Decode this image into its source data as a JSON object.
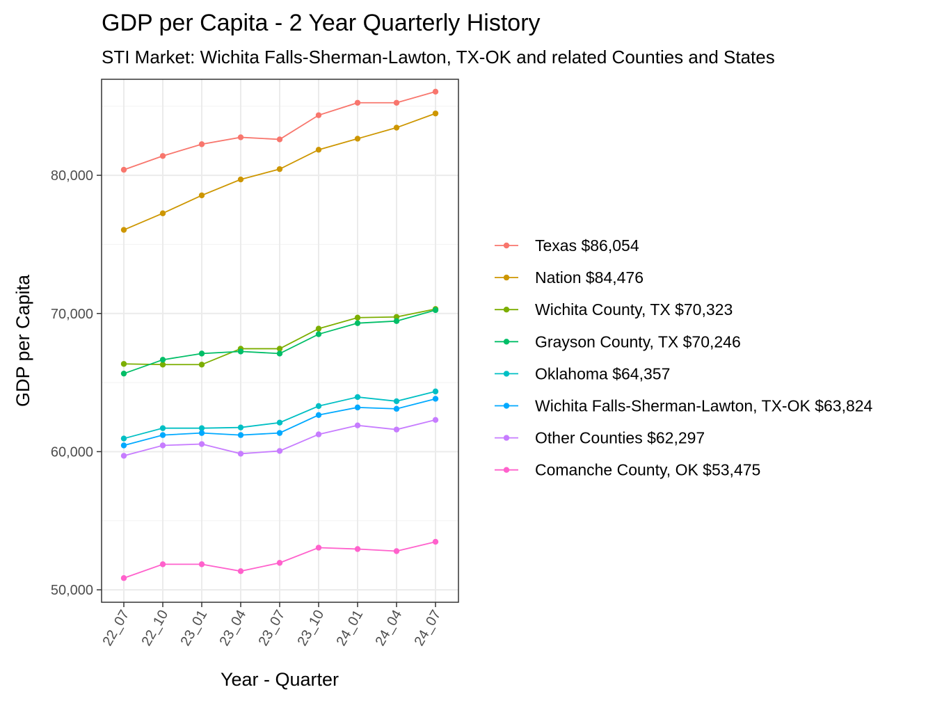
{
  "chart_data": {
    "type": "line",
    "title": "GDP per Capita - 2 Year Quarterly History",
    "subtitle": "STI Market: Wichita Falls-Sherman-Lawton, TX-OK and related Counties and States",
    "xlabel": "Year - Quarter",
    "ylabel": "GDP per Capita",
    "categories": [
      "22_07",
      "22_10",
      "23_01",
      "23_04",
      "23_07",
      "23_10",
      "24_01",
      "24_04",
      "24_07"
    ],
    "y_ticks": [
      50000,
      60000,
      70000,
      80000
    ],
    "y_tick_labels": [
      "50,000",
      "60,000",
      "70,000",
      "80,000"
    ],
    "ylim": [
      49100,
      86950
    ],
    "grid": true,
    "legend_position": "right",
    "series": [
      {
        "name": "Texas $86,054",
        "color": "#F8766D",
        "values": [
          80400,
          81400,
          82250,
          82750,
          82600,
          84350,
          85250,
          85250,
          86054
        ]
      },
      {
        "name": "Nation $84,476",
        "color": "#CD9600",
        "values": [
          76050,
          77250,
          78550,
          79700,
          80450,
          81850,
          82650,
          83450,
          84476
        ]
      },
      {
        "name": "Wichita County, TX $70,323",
        "color": "#7CAE00",
        "values": [
          66350,
          66300,
          66300,
          67450,
          67450,
          68900,
          69700,
          69750,
          70323
        ]
      },
      {
        "name": "Grayson County, TX $70,246",
        "color": "#00BE67",
        "values": [
          65650,
          66650,
          67100,
          67250,
          67100,
          68500,
          69300,
          69450,
          70246
        ]
      },
      {
        "name": "Oklahoma $64,357",
        "color": "#00BFC4",
        "values": [
          60950,
          61700,
          61700,
          61750,
          62100,
          63300,
          63950,
          63650,
          64357
        ]
      },
      {
        "name": "Wichita Falls-Sherman-Lawton, TX-OK $63,824",
        "color": "#00A9FF",
        "values": [
          60450,
          61200,
          61350,
          61200,
          61350,
          62650,
          63200,
          63100,
          63824
        ]
      },
      {
        "name": "Other Counties $62,297",
        "color": "#C77CFF",
        "values": [
          59700,
          60450,
          60550,
          59850,
          60050,
          61250,
          61900,
          61600,
          62297
        ]
      },
      {
        "name": "Comanche County, OK $53,475",
        "color": "#FF61CC",
        "values": [
          50850,
          51850,
          51850,
          51350,
          51950,
          53050,
          52950,
          52800,
          53475
        ]
      }
    ]
  }
}
